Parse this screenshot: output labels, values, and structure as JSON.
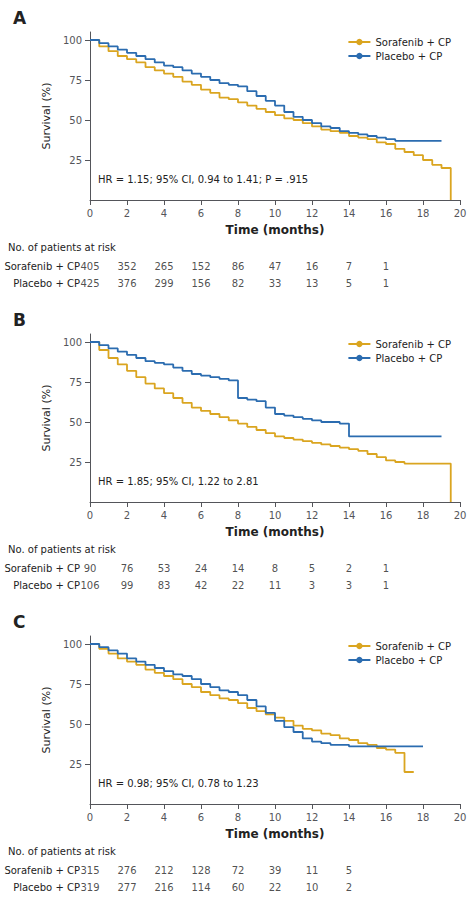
{
  "chart_data": [
    {
      "type": "step",
      "title": "A",
      "x_label": "Time (months)",
      "y_label": "Survival (%)",
      "xlim": [
        0,
        20
      ],
      "ylim": [
        0,
        105
      ],
      "xticks": [
        0,
        2,
        4,
        6,
        8,
        10,
        12,
        14,
        16,
        18,
        20
      ],
      "yticks": [
        25,
        50,
        75,
        100
      ],
      "grid": false,
      "legend": "upper right",
      "annotations": [
        "HR = 1.15; 95% CI, 0.94 to 1.41; P = .915"
      ],
      "series": [
        {
          "name": "Sorafenib + CP",
          "color": "#DAA520",
          "x": [
            0,
            0.5,
            1,
            1.5,
            2,
            2.5,
            3,
            3.5,
            4,
            4.5,
            5,
            5.5,
            6,
            6.5,
            7,
            7.5,
            8,
            8.5,
            9,
            9.5,
            10,
            10.5,
            11,
            11.5,
            12,
            12.5,
            13,
            13.5,
            14,
            14.5,
            15,
            15.5,
            16,
            16.5,
            17,
            17.5,
            18,
            18.5,
            19,
            19.5
          ],
          "values": [
            100,
            96,
            93,
            90,
            88,
            86,
            83,
            81,
            79,
            77,
            74,
            72,
            69,
            67,
            64,
            63,
            61,
            59,
            57,
            55,
            53,
            51,
            50,
            48,
            46,
            44,
            43,
            42,
            40,
            39,
            38,
            36,
            35,
            32,
            30,
            28,
            25,
            22,
            20,
            0
          ]
        },
        {
          "name": "Placebo + CP",
          "color": "#2B6CB0",
          "x": [
            0,
            0.5,
            1,
            1.5,
            2,
            2.5,
            3,
            3.5,
            4,
            4.5,
            5,
            5.5,
            6,
            6.5,
            7,
            7.5,
            8,
            8.5,
            9,
            9.5,
            10,
            10.5,
            11,
            11.5,
            12,
            12.5,
            13,
            13.5,
            14,
            14.5,
            15,
            15.5,
            16,
            16.5,
            17,
            17.5,
            18,
            18.5,
            19
          ],
          "values": [
            100,
            98,
            96,
            94,
            92,
            90,
            88,
            86,
            84,
            83,
            81,
            79,
            77,
            75,
            73,
            72,
            71,
            68,
            65,
            62,
            59,
            55,
            52,
            50,
            48,
            46,
            45,
            43,
            42,
            41,
            40,
            39,
            38,
            37,
            37,
            37,
            37,
            37,
            37
          ]
        }
      ],
      "risk_table": {
        "title": "No. of patients at risk",
        "x": [
          0,
          2,
          4,
          6,
          8,
          10,
          12,
          14,
          16
        ],
        "rows": [
          {
            "name": "Sorafenib + CP",
            "values": [
              405,
              352,
              265,
              152,
              86,
              47,
              16,
              7,
              1
            ]
          },
          {
            "name": "Placebo + CP",
            "values": [
              425,
              376,
              299,
              156,
              82,
              33,
              13,
              5,
              1
            ]
          }
        ]
      }
    },
    {
      "type": "step",
      "title": "B",
      "x_label": "Time (months)",
      "y_label": "Survival (%)",
      "xlim": [
        0,
        20
      ],
      "ylim": [
        0,
        105
      ],
      "xticks": [
        0,
        2,
        4,
        6,
        8,
        10,
        12,
        14,
        16,
        18,
        20
      ],
      "yticks": [
        25,
        50,
        75,
        100
      ],
      "grid": false,
      "legend": "upper right",
      "annotations": [
        "HR = 1.85; 95% CI, 1.22 to 2.81"
      ],
      "series": [
        {
          "name": "Sorafenib + CP",
          "color": "#DAA520",
          "x": [
            0,
            0.5,
            1,
            1.5,
            2,
            2.5,
            3,
            3.5,
            4,
            4.5,
            5,
            5.5,
            6,
            6.5,
            7,
            7.5,
            8,
            8.5,
            9,
            9.5,
            10,
            10.5,
            11,
            11.5,
            12,
            12.5,
            13,
            13.5,
            14,
            14.5,
            15,
            15.5,
            16,
            16.5,
            17,
            17.5,
            18,
            18.5,
            19,
            19.5
          ],
          "values": [
            100,
            95,
            90,
            86,
            82,
            78,
            74,
            71,
            68,
            65,
            62,
            59,
            57,
            55,
            53,
            51,
            49,
            47,
            45,
            43,
            41,
            40,
            39,
            38,
            37,
            36,
            35,
            34,
            33,
            32,
            30,
            28,
            26,
            25,
            24,
            24,
            24,
            24,
            24,
            0
          ]
        },
        {
          "name": "Placebo + CP",
          "color": "#2B6CB0",
          "x": [
            0,
            0.5,
            1,
            1.5,
            2,
            2.5,
            3,
            3.5,
            4,
            4.5,
            5,
            5.5,
            6,
            6.5,
            7,
            7.5,
            8,
            8.5,
            9,
            9.5,
            10,
            10.5,
            11,
            11.5,
            12,
            12.5,
            13,
            13.5,
            14,
            14.5,
            15,
            15.5,
            16,
            16.5,
            17,
            17.5,
            18,
            18.5,
            19
          ],
          "values": [
            100,
            98,
            96,
            94,
            92,
            90,
            88,
            87,
            86,
            84,
            82,
            80,
            79,
            78,
            77,
            76,
            65,
            64,
            63,
            59,
            55,
            54,
            53,
            52,
            51,
            50,
            50,
            49,
            41,
            41,
            41,
            41,
            41,
            41,
            41,
            41,
            41,
            41,
            41
          ]
        }
      ],
      "risk_table": {
        "title": "No. of patients at risk",
        "x": [
          0,
          2,
          4,
          6,
          8,
          10,
          12,
          14,
          16
        ],
        "rows": [
          {
            "name": "Sorafenib + CP",
            "values": [
              90,
              76,
              53,
              24,
              14,
              8,
              5,
              2,
              1
            ]
          },
          {
            "name": "Placebo + CP",
            "values": [
              106,
              99,
              83,
              42,
              22,
              11,
              3,
              3,
              1
            ]
          }
        ]
      }
    },
    {
      "type": "step",
      "title": "C",
      "x_label": "Time (months)",
      "y_label": "Survival (%)",
      "xlim": [
        0,
        20
      ],
      "ylim": [
        0,
        105
      ],
      "xticks": [
        0,
        2,
        4,
        6,
        8,
        10,
        12,
        14,
        16,
        18,
        20
      ],
      "yticks": [
        25,
        50,
        75,
        100
      ],
      "grid": false,
      "legend": "upper right",
      "annotations": [
        "HR = 0.98; 95% CI, 0.78 to 1.23"
      ],
      "series": [
        {
          "name": "Sorafenib + CP",
          "color": "#DAA520",
          "x": [
            0,
            0.5,
            1,
            1.5,
            2,
            2.5,
            3,
            3.5,
            4,
            4.5,
            5,
            5.5,
            6,
            6.5,
            7,
            7.5,
            8,
            8.5,
            9,
            9.5,
            10,
            10.5,
            11,
            11.5,
            12,
            12.5,
            13,
            13.5,
            14,
            14.5,
            15,
            15.5,
            16,
            16.5,
            17,
            17.5
          ],
          "values": [
            100,
            97,
            94,
            91,
            89,
            87,
            84,
            82,
            80,
            78,
            75,
            73,
            70,
            68,
            66,
            65,
            63,
            60,
            58,
            56,
            54,
            52,
            49,
            47,
            46,
            44,
            43,
            41,
            40,
            38,
            37,
            35,
            34,
            32,
            20,
            20
          ]
        },
        {
          "name": "Placebo + CP",
          "color": "#2B6CB0",
          "x": [
            0,
            0.5,
            1,
            1.5,
            2,
            2.5,
            3,
            3.5,
            4,
            4.5,
            5,
            5.5,
            6,
            6.5,
            7,
            7.5,
            8,
            8.5,
            9,
            9.5,
            10,
            10.5,
            11,
            11.5,
            12,
            12.5,
            13,
            13.5,
            14,
            14.5,
            15,
            15.5,
            16,
            16.5,
            17,
            17.5,
            18
          ],
          "values": [
            100,
            98,
            96,
            94,
            91,
            89,
            87,
            85,
            83,
            81,
            80,
            78,
            75,
            73,
            71,
            70,
            68,
            65,
            61,
            57,
            52,
            48,
            45,
            41,
            39,
            38,
            37,
            37,
            36,
            36,
            36,
            36,
            36,
            36,
            36,
            36,
            36
          ]
        }
      ],
      "risk_table": {
        "title": "No. of patients at risk",
        "x": [
          0,
          2,
          4,
          6,
          8,
          10,
          12,
          14
        ],
        "rows": [
          {
            "name": "Sorafenib + CP",
            "values": [
              315,
              276,
              212,
              128,
              72,
              39,
              11,
              5
            ]
          },
          {
            "name": "Placebo + CP",
            "values": [
              319,
              277,
              216,
              114,
              60,
              22,
              10,
              2
            ]
          }
        ]
      }
    }
  ]
}
